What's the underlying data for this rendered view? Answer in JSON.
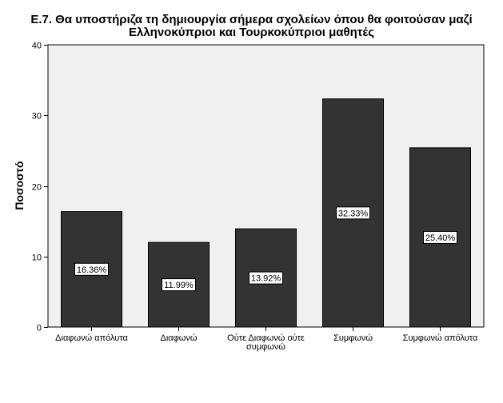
{
  "chart_data": {
    "type": "bar",
    "title_lines": [
      "Ε.7. Θα υποστήριζα τη δημιουργία σήμερα σχολείων όπου θα φοιτούσαν μαζί",
      "Ελληνοκύπριοι και Τουρκοκύπριοι μαθητές"
    ],
    "ylabel": "Ποσοστό",
    "xlabel": "",
    "ylim": [
      0,
      40
    ],
    "yticks": [
      0,
      10,
      20,
      30,
      40
    ],
    "categories": [
      [
        "Διαφωνώ απόλυτα"
      ],
      [
        "Διαφωνώ"
      ],
      [
        "Ούτε Διαφωνώ ούτε",
        "συμφωνώ"
      ],
      [
        "Συμφωνώ"
      ],
      [
        "Συμφωνώ απόλυτα"
      ]
    ],
    "values": [
      16.36,
      11.99,
      13.92,
      32.33,
      25.4
    ],
    "data_labels": [
      "16.36%",
      "11.99%",
      "13.92%",
      "32.33%",
      "25.40%"
    ],
    "bar_color": "#333333",
    "plot_background": "#f0f0f0",
    "grid": false,
    "legend": "none"
  }
}
